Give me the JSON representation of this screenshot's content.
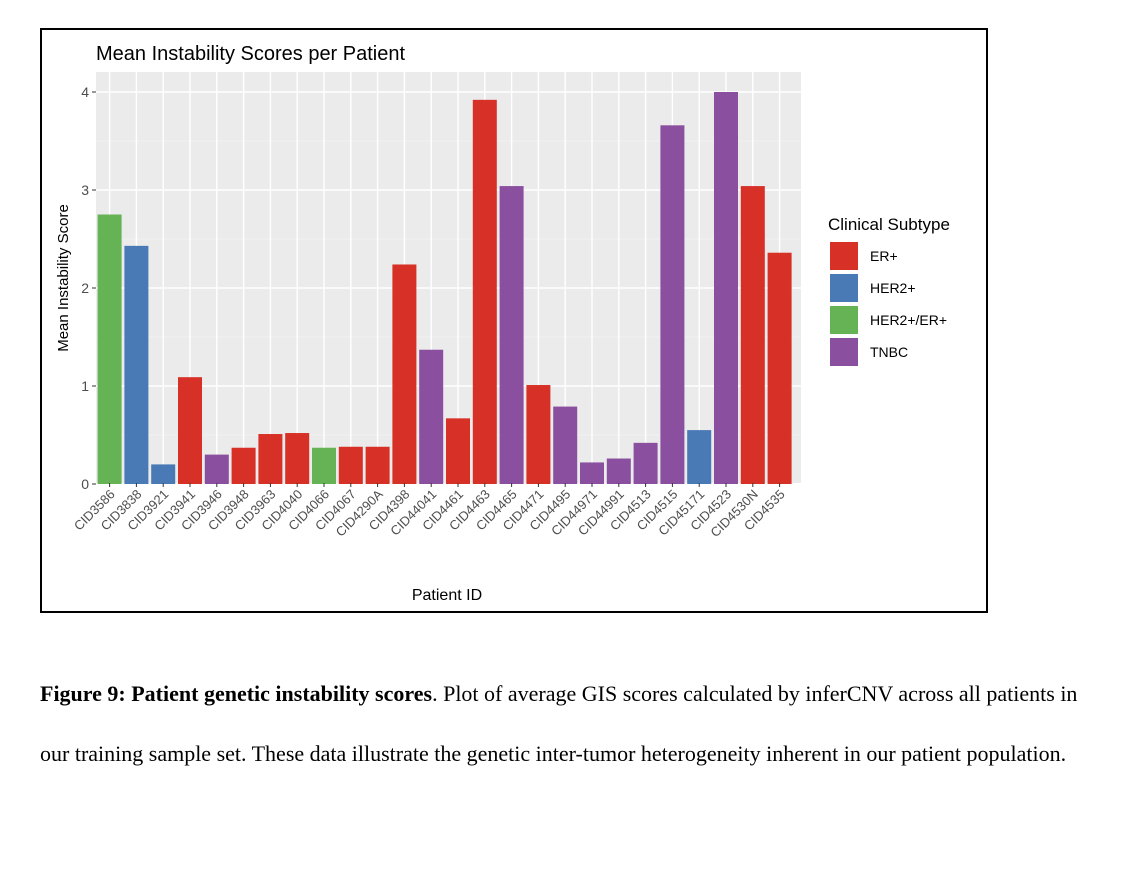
{
  "chart_data": {
    "type": "bar",
    "title": "Mean Instability Scores per Patient",
    "xlabel": "Patient ID",
    "ylabel": "Mean Instability Score",
    "ylim": [
      0,
      4
    ],
    "yticks": [
      0,
      1,
      2,
      3,
      4
    ],
    "grid": true,
    "legend_position": "right",
    "legend_title": "Clinical Subtype",
    "legend": [
      {
        "name": "ER+",
        "color": "#d73027"
      },
      {
        "name": "HER2+",
        "color": "#4a7ab5"
      },
      {
        "name": "HER2+/ER+",
        "color": "#66b355"
      },
      {
        "name": "TNBC",
        "color": "#8b4f9f"
      }
    ],
    "categories": [
      "CID3586",
      "CID3838",
      "CID3921",
      "CID3941",
      "CID3946",
      "CID3948",
      "CID3963",
      "CID4040",
      "CID4066",
      "CID4067",
      "CID4290A",
      "CID4398",
      "CID44041",
      "CID4461",
      "CID4463",
      "CID4465",
      "CID4471",
      "CID4495",
      "CID44971",
      "CID44991",
      "CID4513",
      "CID4515",
      "CID45171",
      "CID4523",
      "CID4530N",
      "CID4535"
    ],
    "values": [
      2.75,
      2.43,
      0.2,
      1.09,
      0.3,
      0.37,
      0.51,
      0.52,
      0.37,
      0.38,
      0.38,
      2.24,
      1.37,
      0.67,
      3.92,
      3.04,
      1.01,
      0.79,
      0.22,
      0.26,
      0.42,
      3.66,
      0.55,
      4.0,
      3.04,
      2.36
    ],
    "subtypes": [
      "HER2+/ER+",
      "HER2+",
      "HER2+",
      "ER+",
      "TNBC",
      "ER+",
      "ER+",
      "ER+",
      "HER2+/ER+",
      "ER+",
      "ER+",
      "ER+",
      "TNBC",
      "ER+",
      "ER+",
      "TNBC",
      "ER+",
      "TNBC",
      "TNBC",
      "TNBC",
      "TNBC",
      "TNBC",
      "HER2+",
      "TNBC",
      "ER+",
      "ER+"
    ]
  },
  "caption": {
    "lead": "Figure 9: Patient genetic instability scores",
    "body": ". Plot of average GIS scores calculated by inferCNV across all patients in our training sample set. These data illustrate the genetic inter-tumor heterogeneity inherent in our patient population."
  }
}
